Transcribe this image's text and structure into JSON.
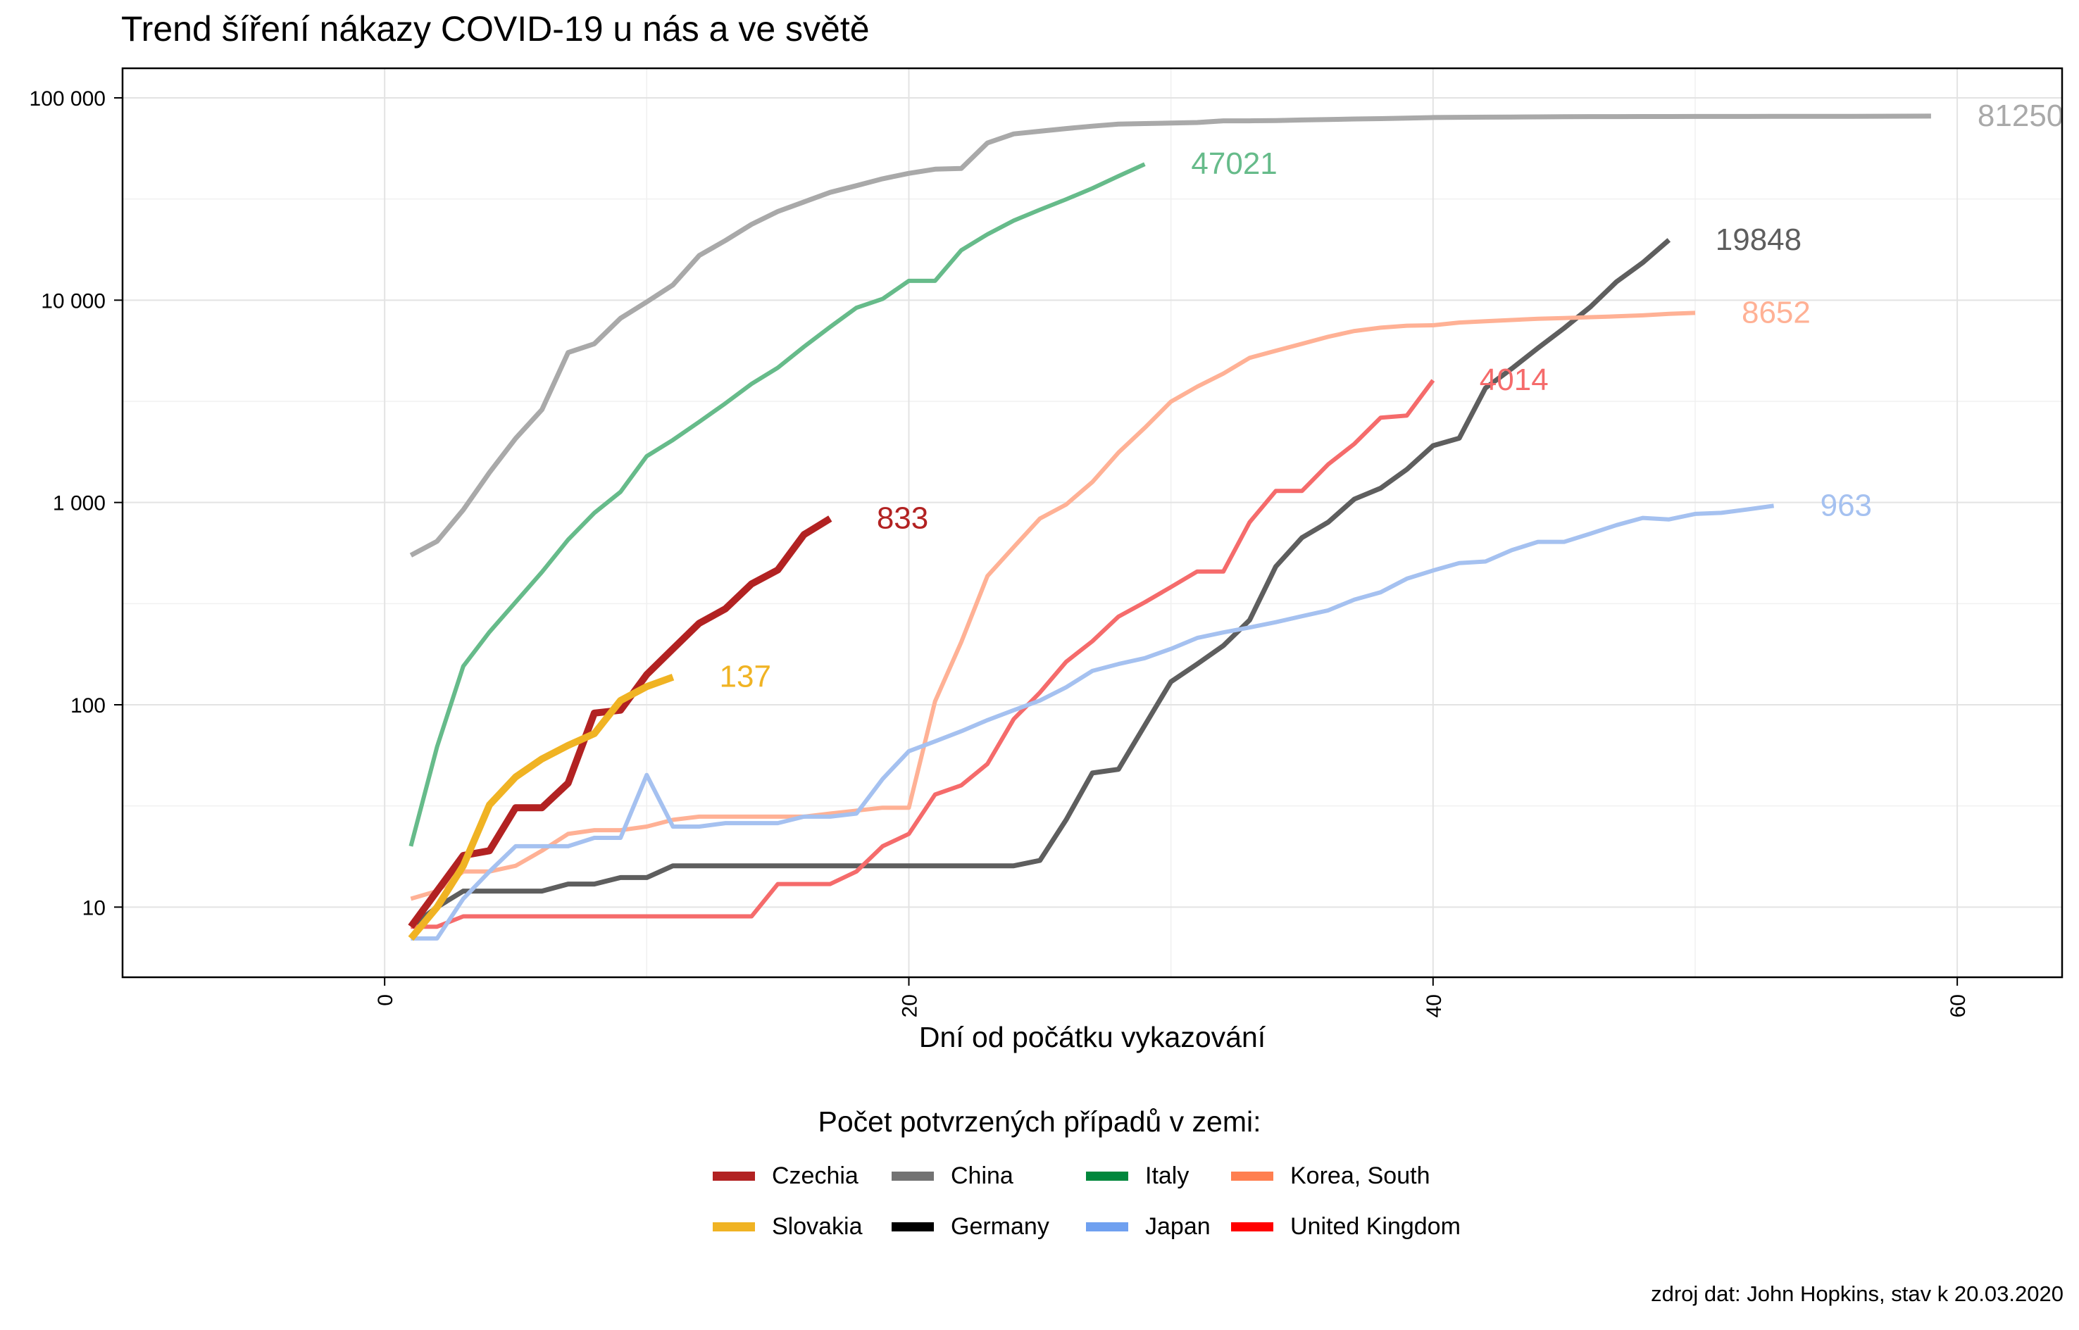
{
  "chart_data": {
    "type": "line",
    "title": "Trend šíření nákazy COVID-19 u nás a ve světě",
    "xlabel": "Dní od počátku vykazování",
    "ylabel": "",
    "xlim": [
      -10,
      64
    ],
    "ylim": [
      4.5,
      140000
    ],
    "y_scale": "log",
    "grid": true,
    "x_ticks": [
      0,
      20,
      40,
      60
    ],
    "x_tick_labels": [
      "0",
      "20",
      "40",
      "60"
    ],
    "y_ticks": [
      10,
      100,
      1000,
      10000,
      100000
    ],
    "y_tick_labels": [
      "10",
      "100",
      "1 000",
      "10 000",
      "100 000"
    ],
    "legend_title": "Počet potvrzených případů v zemi:",
    "legend_position": "bottom",
    "caption": "zdroj dat: John Hopkins, stav k 20.03.2020",
    "legend": [
      {
        "name": "Czechia",
        "color": "#b22222"
      },
      {
        "name": "Slovakia",
        "color": "#f0b323"
      },
      {
        "name": "China",
        "color": "#737373"
      },
      {
        "name": "Germany",
        "color": "#000000"
      },
      {
        "name": "Italy",
        "color": "#00873c"
      },
      {
        "name": "Japan",
        "color": "#6fa0f0"
      },
      {
        "name": "Korea, South",
        "color": "#ff7f50"
      },
      {
        "name": "United Kingdom",
        "color": "#ff0000"
      }
    ],
    "series": [
      {
        "name": "China",
        "color": "#a9a9a9",
        "width": 7,
        "end_label": "81250",
        "x": [
          1,
          2,
          3,
          4,
          5,
          6,
          7,
          8,
          9,
          10,
          11,
          12,
          13,
          14,
          15,
          16,
          17,
          18,
          19,
          20,
          21,
          22,
          23,
          24,
          25,
          26,
          27,
          28,
          29,
          30,
          31,
          32,
          33,
          34,
          35,
          36,
          37,
          38,
          39,
          40,
          41,
          42,
          43,
          44,
          45,
          46,
          47,
          48,
          49,
          50,
          51,
          52,
          53,
          54,
          55,
          56,
          57,
          58,
          59
        ],
        "y": [
          548,
          643,
          920,
          1406,
          2075,
          2877,
          5509,
          6087,
          8141,
          9802,
          11891,
          16630,
          19716,
          23707,
          27440,
          30587,
          34110,
          36814,
          39829,
          42354,
          44386,
          44759,
          59895,
          66358,
          68413,
          70513,
          72434,
          74211,
          74619,
          75077,
          75550,
          77001,
          77022,
          77241,
          77754,
          78166,
          78600,
          78928,
          79356,
          79932,
          80136,
          80261,
          80386,
          80537,
          80690,
          80770,
          80823,
          80860,
          80887,
          80921,
          80932,
          80945,
          80977,
          81003,
          81033,
          81058,
          81102,
          81156,
          81250
        ]
      },
      {
        "name": "Italy",
        "color": "#66bb8a",
        "width": 6,
        "end_label": "47021",
        "x": [
          1,
          2,
          3,
          4,
          5,
          6,
          7,
          8,
          9,
          10,
          11,
          12,
          13,
          14,
          15,
          16,
          17,
          18,
          19,
          20,
          21,
          22,
          23,
          24,
          25,
          26,
          27,
          28,
          29
        ],
        "y": [
          20,
          62,
          155,
          229,
          322,
          453,
          655,
          888,
          1128,
          1694,
          2036,
          2502,
          3089,
          3858,
          4636,
          5883,
          7375,
          9172,
          10149,
          12462,
          12462,
          17660,
          21157,
          24747,
          27980,
          31506,
          35713,
          41035,
          47021
        ]
      },
      {
        "name": "Germany",
        "color": "#5e5e5e",
        "width": 7,
        "end_label": "19848",
        "x": [
          1,
          2,
          3,
          4,
          5,
          6,
          7,
          8,
          9,
          10,
          11,
          12,
          13,
          14,
          15,
          16,
          17,
          18,
          19,
          20,
          21,
          22,
          23,
          24,
          25,
          26,
          27,
          28,
          29,
          30,
          31,
          32,
          33,
          34,
          35,
          36,
          37,
          38,
          39,
          40,
          41,
          42,
          43,
          44,
          45,
          46,
          47,
          48,
          49
        ],
        "y": [
          8,
          10,
          12,
          12,
          12,
          12,
          13,
          13,
          14,
          14,
          16,
          16,
          16,
          16,
          16,
          16,
          16,
          16,
          16,
          16,
          16,
          16,
          16,
          16,
          17,
          27,
          46,
          48,
          79,
          130,
          159,
          196,
          262,
          482,
          670,
          799,
          1040,
          1176,
          1457,
          1908,
          2078,
          3675,
          4585,
          5795,
          7272,
          9257,
          12327,
          15320,
          19848
        ]
      },
      {
        "name": "Korea, South",
        "color": "#ffb195",
        "width": 6,
        "end_label": "8652",
        "x": [
          1,
          2,
          3,
          4,
          5,
          6,
          7,
          8,
          9,
          10,
          11,
          12,
          13,
          14,
          15,
          16,
          17,
          18,
          19,
          20,
          21,
          22,
          23,
          24,
          25,
          26,
          27,
          28,
          29,
          30,
          31,
          32,
          33,
          34,
          35,
          36,
          37,
          38,
          39,
          40,
          41,
          42,
          43,
          44,
          45,
          46,
          47,
          48,
          49,
          50
        ],
        "y": [
          11,
          12,
          15,
          15,
          16,
          19,
          23,
          24,
          24,
          25,
          27,
          28,
          28,
          28,
          28,
          28,
          29,
          30,
          31,
          31,
          104,
          204,
          433,
          602,
          833,
          977,
          1261,
          1766,
          2337,
          3150,
          3736,
          4335,
          5186,
          5621,
          6088,
          6593,
          7041,
          7314,
          7478,
          7513,
          7755,
          7869,
          7979,
          8086,
          8162,
          8236,
          8320,
          8413,
          8565,
          8652
        ]
      },
      {
        "name": "United Kingdom",
        "color": "#f56b6b",
        "width": 6,
        "end_label": "4014",
        "x": [
          1,
          2,
          3,
          4,
          5,
          6,
          7,
          8,
          9,
          10,
          11,
          12,
          13,
          14,
          15,
          16,
          17,
          18,
          19,
          20,
          21,
          22,
          23,
          24,
          25,
          26,
          27,
          28,
          29,
          30,
          31,
          32,
          33,
          34,
          35,
          36,
          37,
          38,
          39,
          40
        ],
        "y": [
          8,
          8,
          9,
          9,
          9,
          9,
          9,
          9,
          9,
          9,
          9,
          9,
          9,
          9,
          13,
          13,
          13,
          15,
          20,
          23,
          36,
          40,
          51,
          85,
          115,
          163,
          206,
          273,
          321,
          382,
          456,
          456,
          798,
          1140,
          1140,
          1543,
          1950,
          2626,
          2689,
          4014
        ]
      },
      {
        "name": "Japan",
        "color": "#a5c1f0",
        "width": 6,
        "end_label": "963",
        "x": [
          1,
          2,
          3,
          4,
          5,
          6,
          7,
          8,
          9,
          10,
          11,
          12,
          13,
          14,
          15,
          16,
          17,
          18,
          19,
          20,
          21,
          22,
          23,
          24,
          25,
          26,
          27,
          28,
          29,
          30,
          31,
          32,
          33,
          34,
          35,
          36,
          37,
          38,
          39,
          40,
          41,
          42,
          43,
          44,
          45,
          46,
          47,
          48,
          49,
          50,
          51,
          52,
          53
        ],
        "y": [
          7,
          7,
          11,
          15,
          20,
          20,
          20,
          22,
          22,
          45,
          25,
          25,
          26,
          26,
          26,
          28,
          28,
          29,
          43,
          59,
          66,
          74,
          84,
          94,
          105,
          122,
          147,
          159,
          170,
          189,
          214,
          228,
          241,
          256,
          274,
          293,
          331,
          360,
          420,
          461,
          502,
          511,
          581,
          639,
          639,
          701,
          773,
          839,
          825,
          878,
          889,
          924,
          963
        ]
      },
      {
        "name": "Czechia",
        "color": "#b22222",
        "width": 10,
        "end_label": "833",
        "x": [
          1,
          2,
          3,
          4,
          5,
          6,
          7,
          8,
          9,
          10,
          11,
          12,
          13,
          14,
          15,
          16,
          17
        ],
        "y": [
          8,
          12,
          18,
          19,
          31,
          31,
          41,
          91,
          94,
          141,
          189,
          253,
          298,
          396,
          464,
          694,
          833
        ]
      },
      {
        "name": "Slovakia",
        "color": "#f0b323",
        "width": 10,
        "end_label": "137",
        "x": [
          1,
          2,
          3,
          4,
          5,
          6,
          7,
          8,
          9,
          10,
          11
        ],
        "y": [
          7,
          10,
          16,
          32,
          44,
          54,
          63,
          72,
          105,
          123,
          137
        ]
      }
    ]
  }
}
